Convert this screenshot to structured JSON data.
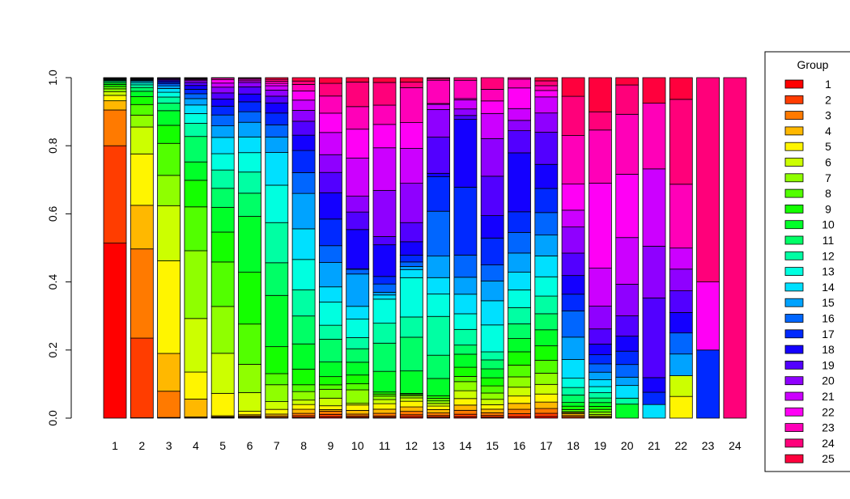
{
  "chart_data": {
    "type": "bar",
    "stacked": true,
    "normalized": true,
    "categories": [
      "1",
      "2",
      "3",
      "4",
      "5",
      "6",
      "7",
      "8",
      "9",
      "10",
      "11",
      "12",
      "13",
      "14",
      "15",
      "16",
      "17",
      "18",
      "19",
      "20",
      "21",
      "22",
      "23",
      "24"
    ],
    "ylim": [
      0,
      1
    ],
    "yticks": [
      "0.0",
      "0.2",
      "0.4",
      "0.6",
      "0.8",
      "1.0"
    ],
    "xlabel": "",
    "ylabel": "",
    "title": "",
    "legend": {
      "title": "Group",
      "placement": "right",
      "entries": [
        "1",
        "2",
        "3",
        "4",
        "5",
        "6",
        "7",
        "8",
        "9",
        "10",
        "11",
        "12",
        "13",
        "14",
        "15",
        "16",
        "17",
        "18",
        "19",
        "20",
        "21",
        "22",
        "23",
        "24",
        "25"
      ]
    },
    "colors": [
      "#FF0000",
      "#FF3D00",
      "#FF7A00",
      "#FFB800",
      "#FFF500",
      "#CCFF00",
      "#8FFF00",
      "#52FF00",
      "#14FF00",
      "#00FF29",
      "#00FF66",
      "#00FFA3",
      "#00FFE0",
      "#00E0FF",
      "#00A3FF",
      "#0066FF",
      "#0029FF",
      "#1400FF",
      "#5200FF",
      "#8F00FF",
      "#CC00FF",
      "#FF00F5",
      "#FF00B8",
      "#FF007A",
      "#FF003D"
    ],
    "series_proportions": [
      [
        0.514,
        0.286,
        0.105,
        0.027,
        0.016,
        0.011,
        0.008,
        0.007,
        0.006,
        0.005,
        0.004,
        0.003,
        0.002,
        0.002,
        0.001,
        0.001,
        0.001,
        0.001,
        0,
        0,
        0,
        0,
        0,
        0,
        0
      ],
      [
        0.001,
        0.234,
        0.262,
        0.128,
        0.151,
        0.079,
        0.035,
        0.031,
        0.023,
        0.016,
        0.011,
        0.008,
        0.006,
        0.004,
        0.003,
        0.002,
        0.002,
        0.002,
        0.001,
        0.001,
        0,
        0,
        0,
        0,
        0
      ],
      [
        0,
        0.002,
        0.077,
        0.111,
        0.272,
        0.162,
        0.089,
        0.094,
        0.053,
        0.043,
        0.022,
        0.018,
        0.014,
        0.011,
        0.008,
        0.006,
        0.005,
        0.004,
        0.003,
        0.003,
        0.001,
        0.001,
        0.001,
        0,
        0
      ],
      [
        0,
        0.001,
        0.002,
        0.048,
        0.072,
        0.143,
        0.181,
        0.117,
        0.071,
        0.049,
        0.068,
        0.035,
        0.026,
        0.023,
        0.017,
        0.013,
        0.012,
        0.01,
        0.008,
        0.005,
        0.003,
        0.002,
        0.002,
        0.001,
        0
      ],
      [
        0.001,
        0.001,
        0.002,
        0.003,
        0.066,
        0.118,
        0.138,
        0.131,
        0.088,
        0.073,
        0.056,
        0.054,
        0.048,
        0.048,
        0.034,
        0.032,
        0.026,
        0.021,
        0.018,
        0.017,
        0.012,
        0.01,
        0.005,
        0.001,
        0
      ],
      [
        0.001,
        0.002,
        0.003,
        0.004,
        0.01,
        0.055,
        0.083,
        0.118,
        0.152,
        0.164,
        0.068,
        0.062,
        0.057,
        0.046,
        0.043,
        0.031,
        0.029,
        0.023,
        0.021,
        0.013,
        0.005,
        0.004,
        0.003,
        0.002,
        0
      ],
      [
        0,
        0.002,
        0.004,
        0.006,
        0.014,
        0.023,
        0.05,
        0.033,
        0.08,
        0.152,
        0.097,
        0.119,
        0.111,
        0.097,
        0.046,
        0.036,
        0.035,
        0.03,
        0.02,
        0.018,
        0.013,
        0.007,
        0.006,
        0.006,
        0.005
      ],
      [
        0.002,
        0.005,
        0.007,
        0.012,
        0.014,
        0.013,
        0.025,
        0.02,
        0.046,
        0.074,
        0.082,
        0.077,
        0.089,
        0.09,
        0.104,
        0.061,
        0.065,
        0.045,
        0.041,
        0.032,
        0.03,
        0.027,
        0.019,
        0.01,
        0.01
      ],
      [
        0.004,
        0.008,
        0.01,
        0.005,
        0.012,
        0.024,
        0.028,
        0.014,
        0.026,
        0.046,
        0.072,
        0.044,
        0.073,
        0.048,
        0.077,
        0.053,
        0.084,
        0.083,
        0.064,
        0.056,
        0.07,
        0.061,
        0.054,
        0.04,
        0.018
      ],
      [
        0.002,
        0.004,
        0.006,
        0.011,
        0.016,
        0.005,
        0.04,
        0.018,
        0.026,
        0.038,
        0.04,
        0.033,
        0.055,
        0.038,
        0.096,
        0.014,
        0.001,
        0.117,
        0.052,
        0.047,
        0.113,
        0.086,
        0.067,
        0.073,
        0.013
      ],
      [
        0.001,
        0.002,
        0.004,
        0.006,
        0.008,
        0.006,
        0.005,
        0.003,
        0.003,
        0.03,
        0.041,
        0.029,
        0.035,
        0.006,
        0.004,
        0.012,
        0.011,
        0.046,
        0.012,
        0.067,
        0.062,
        0.034,
        0.028,
        0.033,
        0.007
      ],
      [
        0.001,
        0.002,
        0.003,
        0.004,
        0.005,
        0.003,
        0.002,
        0.001,
        0.001,
        0.02,
        0.03,
        0.018,
        0.035,
        0.007,
        0.003,
        0.004,
        0.006,
        0.012,
        0.017,
        0.035,
        0.031,
        0.023,
        0.031,
        0.005,
        0.004
      ],
      [
        0.001,
        0.002,
        0.003,
        0.004,
        0.004,
        0.003,
        0.003,
        0.003,
        0.003,
        0.02,
        0.027,
        0.045,
        0.026,
        0.019,
        0.025,
        0.052,
        0.04,
        0.004,
        0.042,
        0.032,
        0.006,
        0.001,
        0.027,
        0.002,
        0.001
      ],
      [
        0.001,
        0.002,
        0.003,
        0.004,
        0.005,
        0.006,
        0.007,
        0.004,
        0.007,
        0.01,
        0.007,
        0.012,
        0.012,
        0.015,
        0.013,
        0.017,
        0.052,
        0.052,
        0.003,
        0.005,
        0.007,
        0.001,
        0.014,
        0.002,
        0
      ],
      [
        0.001,
        0.002,
        0.003,
        0.004,
        0.005,
        0.006,
        0.007,
        0.008,
        0.009,
        0.01,
        0.01,
        0.009,
        0.03,
        0.027,
        0.022,
        0.018,
        0.03,
        0.025,
        0.044,
        0.042,
        0.028,
        0.014,
        0.013,
        0.013,
        0
      ],
      [
        0.001,
        0.002,
        0.003,
        0.004,
        0.005,
        0.006,
        0.007,
        0.008,
        0.009,
        0.009,
        0.01,
        0.011,
        0.012,
        0.012,
        0.013,
        0.014,
        0.014,
        0.04,
        0.015,
        0.007,
        0.008,
        0.014,
        0.006,
        0.001,
        0
      ],
      [
        0.001,
        0.002,
        0.003,
        0.004,
        0.005,
        0.006,
        0.007,
        0.008,
        0.009,
        0.01,
        0.01,
        0.011,
        0.012,
        0.013,
        0.013,
        0.014,
        0.015,
        0.015,
        0.02,
        0.012,
        0.01,
        0.004,
        0.003,
        0.003,
        0.002
      ],
      [
        0,
        0.003,
        0.004,
        0.005,
        0.003,
        0.001,
        0.001,
        0.006,
        0.009,
        0.01,
        0.02,
        0.02,
        0.025,
        0.05,
        0.06,
        0.07,
        0.045,
        0.05,
        0.06,
        0.07,
        0.045,
        0.07,
        0.13,
        0.105,
        0.05
      ],
      [
        0,
        0,
        0.001,
        0.002,
        0.003,
        0.004,
        0.006,
        0.007,
        0.008,
        0.01,
        0.012,
        0.014,
        0.016,
        0.018,
        0.02,
        0.022,
        0.024,
        0.028,
        0.04,
        0.06,
        0.1,
        0.224,
        0.14,
        0.048,
        0.09
      ],
      [
        0,
        0,
        0,
        0,
        0,
        0,
        0,
        0,
        0,
        0.042,
        0,
        0.018,
        0,
        0.038,
        0.025,
        0.038,
        0.04,
        0.045,
        0.061,
        0.095,
        0.14,
        0.19,
        0.18,
        0.088,
        0.022
      ],
      [
        0,
        0,
        0,
        0,
        0,
        0,
        0,
        0,
        0,
        0,
        0,
        0,
        0,
        0.04,
        0,
        0,
        0.036,
        0.043,
        0.234,
        0.152,
        0.227,
        0,
        0.193,
        0,
        0.075
      ],
      [
        0,
        0,
        0,
        0,
        0.068,
        0.065,
        0,
        0,
        0,
        0,
        0,
        0,
        0,
        0,
        0.068,
        0.066,
        0,
        0.064,
        0.068,
        0.068,
        0.066,
        0,
        0.2,
        0.266,
        0.068
      ],
      [
        0,
        0,
        0,
        0,
        0,
        0,
        0,
        0,
        0,
        0,
        0,
        0,
        0,
        0,
        0,
        0,
        0.2,
        0,
        0,
        0,
        0,
        0.2,
        0,
        0.6,
        0
      ],
      [
        0,
        0,
        0,
        0,
        0,
        0,
        0,
        0,
        0,
        0,
        0,
        0,
        0,
        0,
        0,
        0,
        0,
        0,
        0,
        0,
        0,
        0,
        0,
        1,
        0
      ]
    ]
  }
}
